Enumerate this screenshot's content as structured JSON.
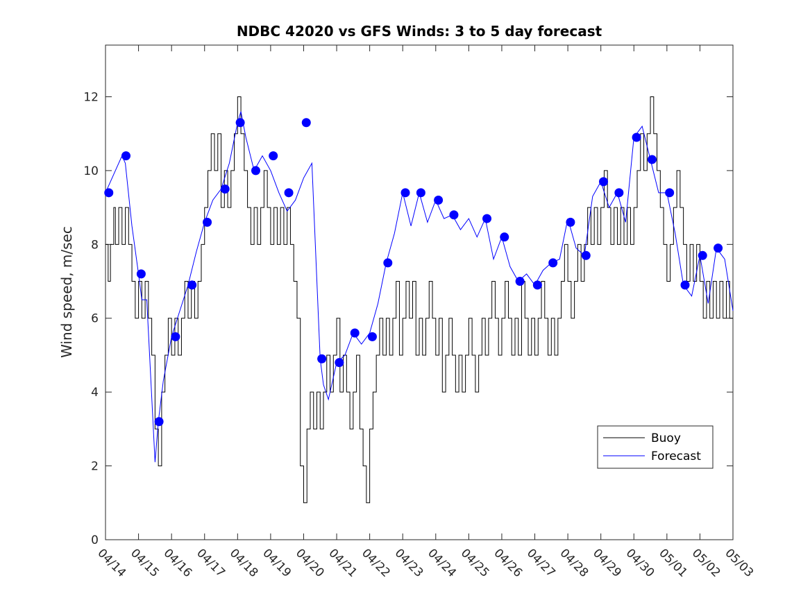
{
  "chart_data": {
    "type": "line",
    "title": "NDBC 42020 vs GFS Winds: 3 to 5 day forecast",
    "xlabel": "",
    "ylabel": "Wind speed, m/sec",
    "x_tick_labels": [
      "04/14",
      "04/15",
      "04/16",
      "04/17",
      "04/18",
      "04/19",
      "04/20",
      "04/21",
      "04/22",
      "04/23",
      "04/24",
      "04/25",
      "04/26",
      "04/27",
      "04/28",
      "04/29",
      "04/30",
      "05/01",
      "05/02",
      "05/03"
    ],
    "xlim": [
      0,
      19
    ],
    "ylim": [
      0,
      13.4
    ],
    "y_ticks": [
      0,
      2,
      4,
      6,
      8,
      10,
      12
    ],
    "grid": false,
    "legend": {
      "position": "lower-right",
      "entries": [
        "Buoy",
        "Forecast"
      ]
    },
    "colors": {
      "buoy": "#000000",
      "forecast": "#0000ff"
    },
    "series": [
      {
        "name": "Buoy",
        "style": "step",
        "x": [
          0,
          0.08,
          0.15,
          0.25,
          0.3,
          0.4,
          0.5,
          0.6,
          0.7,
          0.8,
          0.9,
          1.0,
          1.1,
          1.2,
          1.3,
          1.4,
          1.5,
          1.6,
          1.7,
          1.8,
          1.9,
          2.0,
          2.1,
          2.2,
          2.3,
          2.4,
          2.5,
          2.6,
          2.7,
          2.8,
          2.9,
          3.0,
          3.1,
          3.2,
          3.3,
          3.4,
          3.5,
          3.6,
          3.7,
          3.8,
          3.9,
          4.0,
          4.1,
          4.2,
          4.3,
          4.4,
          4.5,
          4.6,
          4.7,
          4.8,
          4.9,
          5.0,
          5.1,
          5.2,
          5.3,
          5.4,
          5.5,
          5.6,
          5.7,
          5.8,
          5.9,
          6.0,
          6.1,
          6.2,
          6.3,
          6.4,
          6.5,
          6.6,
          6.7,
          6.8,
          6.9,
          7.0,
          7.1,
          7.2,
          7.3,
          7.4,
          7.5,
          7.6,
          7.7,
          7.8,
          7.9,
          8.0,
          8.1,
          8.2,
          8.3,
          8.4,
          8.5,
          8.6,
          8.7,
          8.8,
          8.9,
          9.0,
          9.1,
          9.2,
          9.3,
          9.4,
          9.5,
          9.6,
          9.7,
          9.8,
          9.9,
          10.0,
          10.1,
          10.2,
          10.3,
          10.4,
          10.5,
          10.6,
          10.7,
          10.8,
          10.9,
          11.0,
          11.1,
          11.2,
          11.3,
          11.4,
          11.5,
          11.6,
          11.7,
          11.8,
          11.9,
          12.0,
          12.1,
          12.2,
          12.3,
          12.4,
          12.5,
          12.6,
          12.7,
          12.8,
          12.9,
          13.0,
          13.1,
          13.2,
          13.3,
          13.4,
          13.5,
          13.6,
          13.7,
          13.8,
          13.9,
          14.0,
          14.1,
          14.2,
          14.3,
          14.4,
          14.5,
          14.6,
          14.7,
          14.8,
          14.9,
          15.0,
          15.1,
          15.2,
          15.3,
          15.4,
          15.5,
          15.6,
          15.7,
          15.8,
          15.9,
          16.0,
          16.1,
          16.2,
          16.3,
          16.4,
          16.5,
          16.6,
          16.7,
          16.8,
          16.9,
          17.0,
          17.1,
          17.2,
          17.3,
          17.4,
          17.5,
          17.6,
          17.7,
          17.8,
          17.9,
          18.0,
          18.1,
          18.2,
          18.3,
          18.4,
          18.5,
          18.6,
          18.7,
          18.8,
          18.9,
          19.0
        ],
        "values": [
          8,
          7,
          8,
          9,
          8,
          9,
          8,
          9,
          8,
          7,
          6,
          7,
          6,
          7,
          6,
          5,
          3,
          2,
          4,
          5,
          6,
          5,
          6,
          5,
          6,
          7,
          6,
          7,
          6,
          7,
          8,
          9,
          10,
          11,
          10,
          11,
          9,
          10,
          9,
          10,
          11,
          12,
          11,
          10,
          9,
          8,
          9,
          8,
          9,
          10,
          9,
          8,
          9,
          8,
          9,
          8,
          9,
          8,
          7,
          6,
          2,
          1,
          3,
          4,
          3,
          4,
          3,
          4,
          5,
          4,
          5,
          6,
          4,
          5,
          4,
          3,
          4,
          5,
          3,
          2,
          1,
          3,
          4,
          5,
          6,
          5,
          6,
          5,
          6,
          7,
          5,
          6,
          7,
          6,
          7,
          5,
          6,
          5,
          6,
          7,
          6,
          5,
          6,
          4,
          5,
          6,
          5,
          4,
          5,
          4,
          5,
          6,
          5,
          4,
          5,
          6,
          5,
          6,
          7,
          6,
          5,
          6,
          7,
          6,
          5,
          6,
          5,
          7,
          6,
          5,
          6,
          5,
          6,
          7,
          6,
          5,
          6,
          5,
          6,
          7,
          8,
          7,
          6,
          7,
          8,
          7,
          8,
          9,
          8,
          9,
          8,
          9,
          10,
          9,
          8,
          9,
          8,
          9,
          8,
          9,
          8,
          9,
          10,
          11,
          10,
          11,
          12,
          11,
          10,
          9,
          8,
          7,
          8,
          9,
          10,
          9,
          8,
          7,
          8,
          7,
          8,
          7,
          6,
          7,
          6,
          7,
          6,
          7,
          6,
          7,
          6,
          6
        ]
      },
      {
        "name": "Forecast",
        "style": "line",
        "x": [
          0,
          0.25,
          0.5,
          0.6,
          0.8,
          1.0,
          1.1,
          1.25,
          1.5,
          1.6,
          1.75,
          2.0,
          2.25,
          2.5,
          2.75,
          3.0,
          3.25,
          3.5,
          3.75,
          4.0,
          4.1,
          4.25,
          4.5,
          4.75,
          5.0,
          5.25,
          5.5,
          5.75,
          6.0,
          6.25,
          6.5,
          6.6,
          6.75,
          7.0,
          7.25,
          7.5,
          7.75,
          8.0,
          8.25,
          8.5,
          8.75,
          9.0,
          9.25,
          9.5,
          9.75,
          10.0,
          10.25,
          10.5,
          10.75,
          11.0,
          11.25,
          11.5,
          11.75,
          12.0,
          12.25,
          12.5,
          12.75,
          13.0,
          13.25,
          13.5,
          13.75,
          14.0,
          14.25,
          14.5,
          14.75,
          15.0,
          15.25,
          15.5,
          15.75,
          16.0,
          16.25,
          16.5,
          16.75,
          17.0,
          17.25,
          17.5,
          17.75,
          18.0,
          18.25,
          18.5,
          18.75,
          19.0
        ],
        "values": [
          9.4,
          9.9,
          10.4,
          10.2,
          8.5,
          7.2,
          6.5,
          6.5,
          2.1,
          3.2,
          4.3,
          5.5,
          6.2,
          6.9,
          7.8,
          8.6,
          9.2,
          9.5,
          10.2,
          11.3,
          11.6,
          10.9,
          10.0,
          10.4,
          10.0,
          9.4,
          8.9,
          9.2,
          9.8,
          10.2,
          4.9,
          4.2,
          3.8,
          4.8,
          5.0,
          5.6,
          5.3,
          5.6,
          6.4,
          7.5,
          8.3,
          9.4,
          8.5,
          9.4,
          8.6,
          9.2,
          8.7,
          8.8,
          8.4,
          8.7,
          8.2,
          8.7,
          7.6,
          8.2,
          7.4,
          7.0,
          7.2,
          6.9,
          7.3,
          7.5,
          7.6,
          8.7,
          7.9,
          7.7,
          9.3,
          9.7,
          9.0,
          9.4,
          8.6,
          10.9,
          11.2,
          10.3,
          9.4,
          9.4,
          8.3,
          6.9,
          6.6,
          7.7,
          6.4,
          7.9,
          7.6,
          6.2
        ]
      },
      {
        "name": "",
        "style": "markers",
        "x": [
          0.1,
          0.62,
          1.08,
          1.62,
          2.12,
          2.62,
          3.08,
          3.62,
          4.08,
          4.55,
          5.08,
          5.55,
          6.08,
          6.55,
          7.08,
          7.55,
          8.08,
          8.55,
          9.08,
          9.55,
          10.08,
          10.55,
          11.55,
          12.08,
          12.55,
          13.08,
          13.55,
          14.08,
          14.55,
          15.08,
          15.55,
          16.08,
          16.55,
          17.08,
          17.55,
          18.08,
          18.55
        ],
        "values": [
          9.4,
          10.4,
          7.2,
          3.2,
          5.5,
          6.9,
          8.6,
          9.5,
          11.3,
          10.0,
          10.4,
          9.4,
          11.3,
          4.9,
          4.8,
          5.6,
          5.5,
          7.5,
          9.4,
          9.4,
          9.2,
          8.8,
          8.7,
          8.2,
          7.0,
          6.9,
          7.5,
          8.6,
          7.7,
          9.7,
          9.4,
          10.9,
          10.3,
          9.4,
          6.9,
          7.7,
          7.9
        ]
      }
    ]
  }
}
